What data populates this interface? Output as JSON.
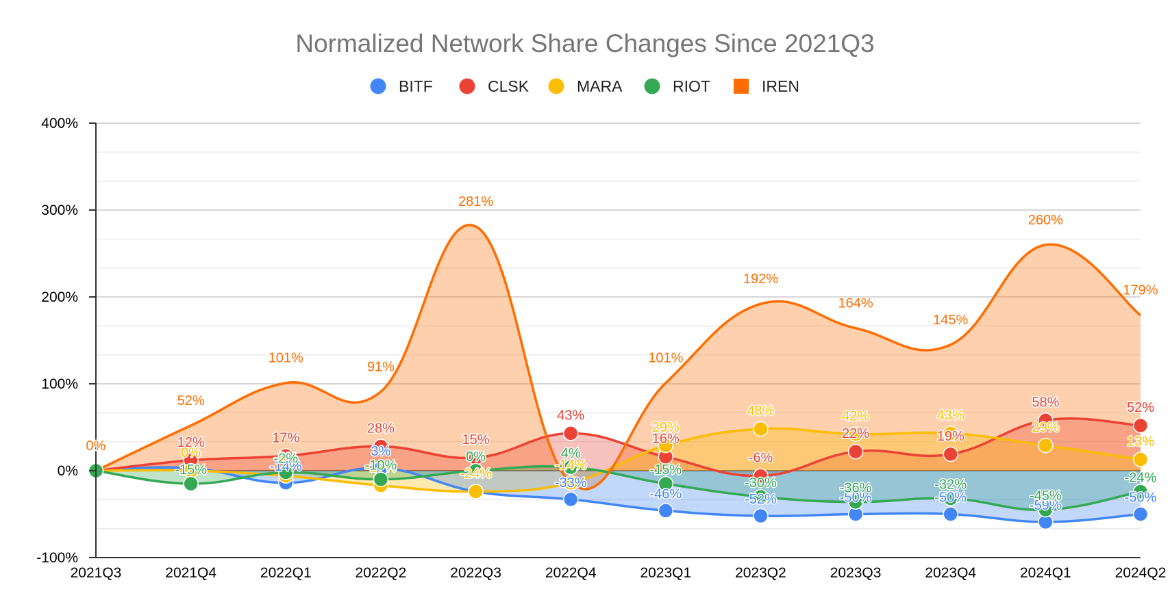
{
  "chart_data": {
    "type": "area",
    "title": "Normalized Network Share Changes Since 2021Q3",
    "xlabel": "",
    "ylabel": "",
    "ylim": [
      -100,
      400
    ],
    "y_ticks": [
      -100,
      0,
      100,
      200,
      300,
      400
    ],
    "y_tick_labels": [
      "-100%",
      "0%",
      "100%",
      "200%",
      "300%",
      "400%"
    ],
    "y_minor_step": 33.33,
    "legend_position": "top-center",
    "categories": [
      "2021Q3",
      "2021Q4",
      "2022Q1",
      "2022Q2",
      "2022Q3",
      "2022Q4",
      "2023Q1",
      "2023Q2",
      "2023Q3",
      "2023Q4",
      "2024Q1",
      "2024Q2"
    ],
    "series": [
      {
        "name": "BITF",
        "color": "#4285f4",
        "marker": "circle",
        "values": [
          0,
          3,
          -14,
          3,
          -24,
          -33,
          -46,
          -52,
          -50,
          -50,
          -59,
          -50
        ],
        "labels": [
          "",
          "",
          "-14%",
          "3%",
          "",
          "-33%",
          "-46%",
          "-52%",
          "-50%",
          "-50%",
          "-59%",
          "-50%"
        ]
      },
      {
        "name": "CLSK",
        "color": "#ea4335",
        "marker": "circle",
        "values": [
          0,
          12,
          17,
          28,
          15,
          43,
          16,
          -6,
          22,
          19,
          58,
          52
        ],
        "labels": [
          "",
          "12%",
          "17%",
          "28%",
          "15%",
          "43%",
          "16%",
          "-6%",
          "22%",
          "19%",
          "58%",
          "52%"
        ]
      },
      {
        "name": "MARA",
        "color": "#fbbc04",
        "marker": "circle",
        "values": [
          0,
          0,
          -6,
          -17,
          -24,
          -14,
          29,
          48,
          42,
          43,
          29,
          13
        ],
        "labels": [
          "",
          "0%",
          "-6%",
          "-17%",
          "-24%",
          "-14%",
          "29%",
          "48%",
          "42%",
          "43%",
          "29%",
          "13%"
        ]
      },
      {
        "name": "RIOT",
        "color": "#34a853",
        "marker": "circle",
        "values": [
          0,
          -15,
          -2,
          -10,
          0,
          4,
          -15,
          -30,
          -36,
          -32,
          -45,
          -24
        ],
        "labels": [
          "",
          "-15%",
          "-2%",
          "-10%",
          "0%",
          "4%",
          "-15%",
          "-30%",
          "-36%",
          "-32%",
          "-45%",
          "-24%"
        ]
      },
      {
        "name": "IREN",
        "color": "#ff6d01",
        "marker": "square",
        "values": [
          0,
          52,
          101,
          91,
          281,
          -14,
          101,
          192,
          164,
          145,
          260,
          179
        ],
        "labels": [
          "0%",
          "52%",
          "101%",
          "91%",
          "281%",
          "",
          "101%",
          "192%",
          "164%",
          "145%",
          "260%",
          "179%"
        ]
      }
    ]
  }
}
